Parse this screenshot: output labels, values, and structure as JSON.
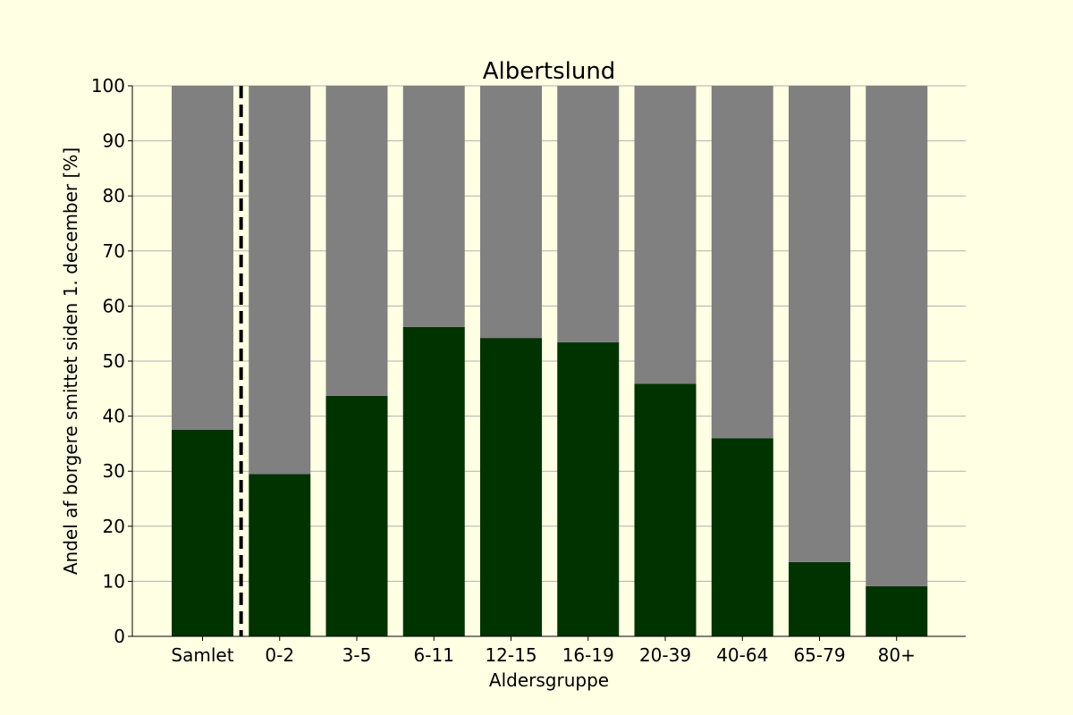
{
  "chart_data": {
    "type": "bar",
    "stacked": true,
    "title": "Albertslund",
    "xlabel": "Aldersgruppe",
    "ylabel": "Andel af borgere smittet siden 1. december [%]",
    "categories": [
      "Samlet",
      "0-2",
      "3-5",
      "6-11",
      "12-15",
      "16-19",
      "20-39",
      "40-64",
      "65-79",
      "80+"
    ],
    "ylim": [
      0,
      100
    ],
    "yticks": [
      0,
      10,
      20,
      30,
      40,
      50,
      60,
      70,
      80,
      90,
      100
    ],
    "grid": "horizontal",
    "separator_after_category": "Samlet",
    "series": [
      {
        "values": [
          37.5,
          29.5,
          43.7,
          56.2,
          54.2,
          53.4,
          45.9,
          36.0,
          13.5,
          9.1
        ],
        "color": "#003300"
      },
      {
        "values": [
          62.5,
          70.5,
          56.3,
          43.8,
          45.8,
          46.6,
          54.1,
          64.0,
          86.5,
          90.9
        ],
        "color": "#808080"
      }
    ]
  }
}
